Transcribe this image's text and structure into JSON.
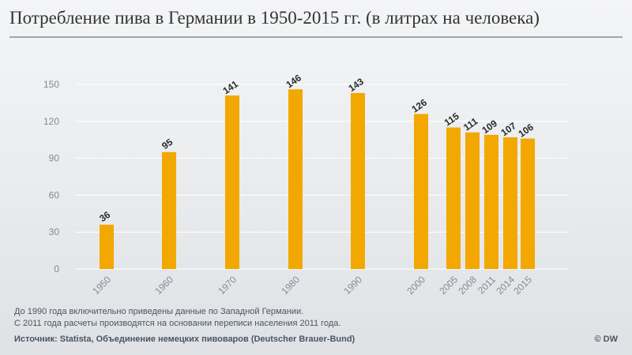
{
  "chart_data": {
    "type": "bar",
    "title": "Потребление пива в Германии в 1950-2015 гг. (в литрах на человека)",
    "categories": [
      "1950",
      "1960",
      "1970",
      "1980",
      "1990",
      "2000",
      "2005",
      "2008",
      "2011",
      "2014",
      "2015"
    ],
    "values": [
      36,
      95,
      141,
      146,
      143,
      126,
      115,
      111,
      109,
      107,
      106
    ],
    "color": "#f2a800",
    "ylim": [
      0,
      150
    ],
    "yticks": [
      0,
      30,
      60,
      90,
      120,
      150
    ],
    "grid": true,
    "notes": [
      "До 1990 года включительно приведены данные по Западной Германии.",
      "С 2011 года расчеты производятся на основании переписи населения 2011 года."
    ],
    "source": "Источник: Statista, Объединение немецких пивоваров (Deutscher Brauer-Bund)",
    "credit": "© DW"
  }
}
